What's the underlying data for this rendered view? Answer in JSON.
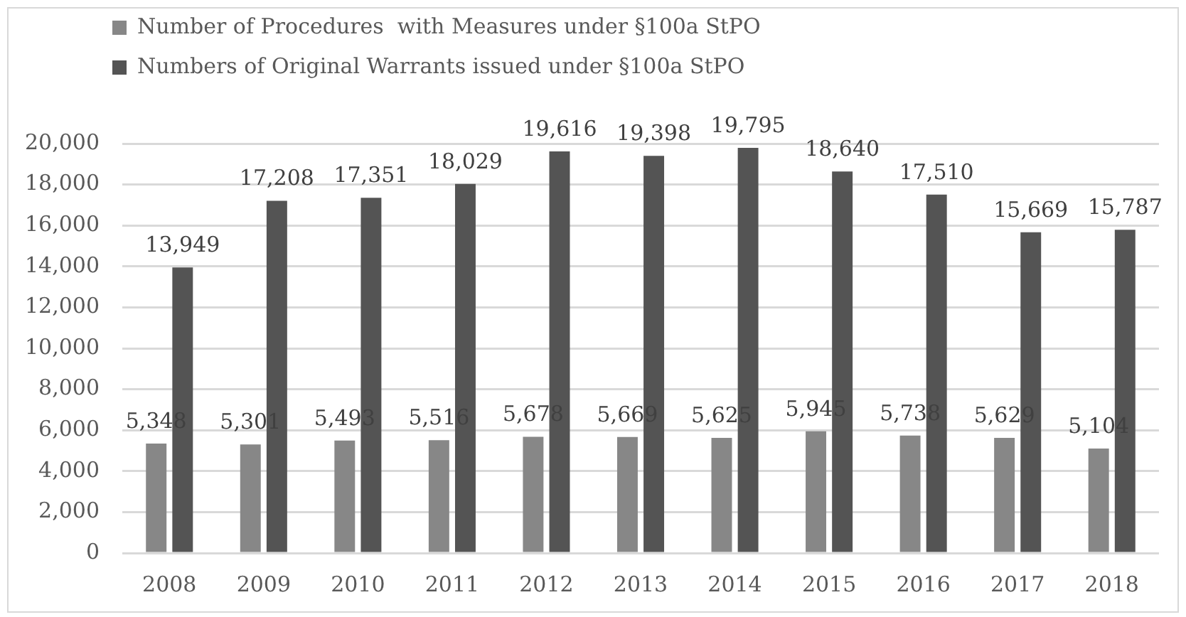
{
  "chart_data": {
    "type": "bar",
    "categories": [
      "2008",
      "2009",
      "2010",
      "2011",
      "2012",
      "2013",
      "2014",
      "2015",
      "2016",
      "2017",
      "2018"
    ],
    "series": [
      {
        "name": "Number of Procedures  with Measures under §100a StPO",
        "color": "#878787",
        "values": [
          5348,
          5301,
          5493,
          5516,
          5678,
          5669,
          5625,
          5945,
          5738,
          5629,
          5104
        ],
        "value_labels": [
          "5,348",
          "5,301",
          "5,493",
          "5,516",
          "5,678",
          "5,669",
          "5,625",
          "5,945",
          "5,738",
          "5,629",
          "5,104"
        ]
      },
      {
        "name": "Numbers of Original Warrants issued under §100a StPO",
        "color": "#545454",
        "values": [
          13949,
          17208,
          17351,
          18029,
          19616,
          19398,
          19795,
          18640,
          17510,
          15669,
          15787
        ],
        "value_labels": [
          "13,949",
          "17,208",
          "17,351",
          "18,029",
          "19,616",
          "19,398",
          "19,795",
          "18,640",
          "17,510",
          "15,669",
          "15,787"
        ]
      }
    ],
    "ylim": [
      0,
      20000
    ],
    "yticks": [
      {
        "value": 0,
        "label": "0"
      },
      {
        "value": 2000,
        "label": "2,000"
      },
      {
        "value": 4000,
        "label": "4,000"
      },
      {
        "value": 6000,
        "label": "6,000"
      },
      {
        "value": 8000,
        "label": "8,000"
      },
      {
        "value": 10000,
        "label": "10,000"
      },
      {
        "value": 12000,
        "label": "12,000"
      },
      {
        "value": 14000,
        "label": "14,000"
      },
      {
        "value": 16000,
        "label": "16,000"
      },
      {
        "value": 18000,
        "label": "18,000"
      },
      {
        "value": 20000,
        "label": "20,000"
      }
    ],
    "grid": "y",
    "legend": "top left"
  }
}
